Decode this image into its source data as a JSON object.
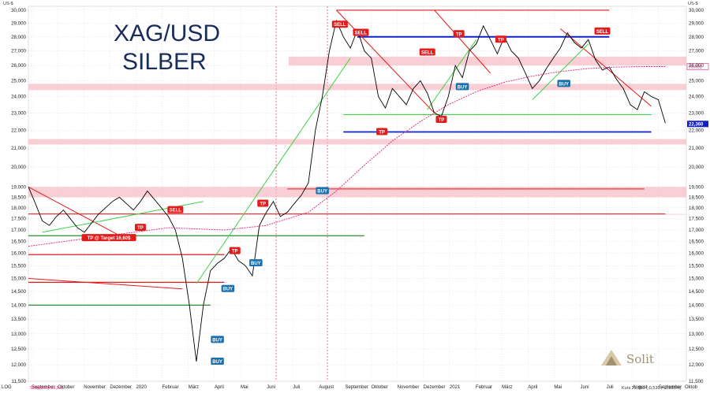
{
  "chart_data": {
    "type": "line",
    "instrument": "XAG/USD",
    "title": "XAG/USD",
    "subtitle": "SILBER",
    "ylabel": "US-$",
    "ylim": [
      11.5,
      30.3
    ],
    "y_scale": "log",
    "yticks": [
      "11,500",
      "12,000",
      "12,500",
      "13,000",
      "13,500",
      "14,000",
      "14,500",
      "15,000",
      "15,500",
      "16,000",
      "16,500",
      "17,000",
      "17,500",
      "18,000",
      "18,500",
      "19,000",
      "20,000",
      "21,000",
      "22,000",
      "23,000",
      "24,000",
      "25,000",
      "26,000",
      "27,000",
      "28,000",
      "29,000",
      "30,000"
    ],
    "x_labels": [
      "September",
      "Oktober",
      "November",
      "Dezember",
      "2020",
      "Februar",
      "März",
      "April",
      "Mai",
      "Juni",
      "Juli",
      "August",
      "September",
      "Oktober",
      "November",
      "Dezember",
      "2021",
      "Februar",
      "März",
      "April",
      "Mai",
      "Juni",
      "Juli",
      "August",
      "September",
      "Oktob"
    ],
    "x_label_left": "LOG",
    "series": [
      {
        "name": "XAG/USD",
        "color": "#000000",
        "values": [
          [
            0,
            19.0
          ],
          [
            1,
            18.2
          ],
          [
            2,
            17.4
          ],
          [
            3,
            17.2
          ],
          [
            4,
            17.6
          ],
          [
            5,
            17.9
          ],
          [
            6,
            17.5
          ],
          [
            7,
            17.1
          ],
          [
            8,
            16.9
          ],
          [
            9,
            17.3
          ],
          [
            10,
            17.7
          ],
          [
            11,
            18.0
          ],
          [
            12,
            18.3
          ],
          [
            13,
            18.5
          ],
          [
            14,
            18.2
          ],
          [
            15,
            17.9
          ],
          [
            16,
            18.3
          ],
          [
            17,
            18.8
          ],
          [
            18,
            18.4
          ],
          [
            19,
            18.0
          ],
          [
            20,
            17.6
          ],
          [
            21,
            17.0
          ],
          [
            22,
            15.8
          ],
          [
            23,
            14.0
          ],
          [
            24,
            12.1
          ],
          [
            25,
            14.0
          ],
          [
            26,
            15.3
          ],
          [
            27,
            15.6
          ],
          [
            28,
            15.8
          ],
          [
            29,
            16.2
          ],
          [
            30,
            15.7
          ],
          [
            31,
            15.5
          ],
          [
            32,
            15.1
          ],
          [
            33,
            17.2
          ],
          [
            34,
            17.8
          ],
          [
            35,
            18.3
          ],
          [
            36,
            17.6
          ],
          [
            37,
            17.8
          ],
          [
            38,
            18.2
          ],
          [
            39,
            18.6
          ],
          [
            40,
            19.2
          ],
          [
            41,
            22.0
          ],
          [
            42,
            24.0
          ],
          [
            43,
            27.0
          ],
          [
            44,
            29.2
          ],
          [
            45,
            28.0
          ],
          [
            46,
            27.2
          ],
          [
            47,
            28.5
          ],
          [
            48,
            27.0
          ],
          [
            49,
            26.5
          ],
          [
            50,
            24.0
          ],
          [
            51,
            23.3
          ],
          [
            52,
            24.5
          ],
          [
            53,
            24.0
          ],
          [
            54,
            23.5
          ],
          [
            55,
            24.5
          ],
          [
            56,
            25.0
          ],
          [
            57,
            24.2
          ],
          [
            58,
            23.0
          ],
          [
            59,
            22.8
          ],
          [
            60,
            24.0
          ],
          [
            61,
            26.0
          ],
          [
            62,
            25.2
          ],
          [
            63,
            27.0
          ],
          [
            64,
            27.5
          ],
          [
            65,
            28.8
          ],
          [
            66,
            27.8
          ],
          [
            67,
            26.8
          ],
          [
            68,
            28.0
          ],
          [
            69,
            27.0
          ],
          [
            70,
            26.5
          ],
          [
            71,
            25.5
          ],
          [
            72,
            24.5
          ],
          [
            73,
            25.0
          ],
          [
            74,
            25.8
          ],
          [
            75,
            26.5
          ],
          [
            76,
            27.2
          ],
          [
            77,
            28.3
          ],
          [
            78,
            27.6
          ],
          [
            79,
            27.2
          ],
          [
            80,
            27.8
          ],
          [
            81,
            26.4
          ],
          [
            82,
            25.7
          ],
          [
            83,
            25.9
          ],
          [
            84,
            25.1
          ],
          [
            85,
            24.5
          ],
          [
            86,
            23.5
          ],
          [
            87,
            23.2
          ],
          [
            88,
            24.3
          ],
          [
            89,
            24.0
          ],
          [
            90,
            23.8
          ],
          [
            91,
            22.4
          ]
        ]
      },
      {
        "name": "SMA(200) 25,931",
        "color": "#e0207a",
        "values": [
          [
            0,
            16.3
          ],
          [
            10,
            16.7
          ],
          [
            20,
            17.1
          ],
          [
            28,
            17.0
          ],
          [
            34,
            17.2
          ],
          [
            40,
            17.8
          ],
          [
            44,
            18.8
          ],
          [
            48,
            20.1
          ],
          [
            52,
            21.4
          ],
          [
            56,
            22.5
          ],
          [
            60,
            23.5
          ],
          [
            64,
            24.3
          ],
          [
            68,
            24.9
          ],
          [
            72,
            25.3
          ],
          [
            76,
            25.6
          ],
          [
            80,
            25.8
          ],
          [
            84,
            25.9
          ],
          [
            88,
            25.93
          ],
          [
            91,
            25.93
          ]
        ]
      }
    ],
    "annotations": [
      {
        "label": "SELL",
        "x": 44.5,
        "y": 28.9
      },
      {
        "label": "SELL",
        "x": 47.5,
        "y": 28.3
      },
      {
        "label": "SELL",
        "x": 57,
        "y": 26.9
      },
      {
        "label": "SELL",
        "x": 21,
        "y": 17.9
      },
      {
        "label": "SELL",
        "x": 82,
        "y": 28.4
      },
      {
        "label": "TP",
        "x": 61.5,
        "y": 28.2
      },
      {
        "label": "TP",
        "x": 67.5,
        "y": 27.8
      },
      {
        "label": "TP",
        "x": 59,
        "y": 22.6
      },
      {
        "label": "TP",
        "x": 50.5,
        "y": 21.9
      },
      {
        "label": "TP",
        "x": 33.5,
        "y": 18.2
      },
      {
        "label": "TP",
        "x": 29.5,
        "y": 16.1
      },
      {
        "label": "TP",
        "x": 16,
        "y": 17.1
      },
      {
        "label": "TP @ Target 16,60$",
        "x": 11.5,
        "y": 16.65
      },
      {
        "label": "BUY",
        "x": 42,
        "y": 18.8
      },
      {
        "label": "BUY",
        "x": 62,
        "y": 24.6
      },
      {
        "label": "BUY",
        "x": 76.5,
        "y": 24.8
      },
      {
        "label": "BUY",
        "x": 32.5,
        "y": 15.6
      },
      {
        "label": "BUY",
        "x": 28.5,
        "y": 14.6
      },
      {
        "label": "BUY",
        "x": 27,
        "y": 12.8
      },
      {
        "label": "BUY",
        "x": 27,
        "y": 12.1
      }
    ],
    "last_price_label": "22,360",
    "sma_label": "25,931",
    "sma_legend": "SMA(200) 25,931",
    "footer_text": "Kurs 22,360 (-0,530 / -2,315%)",
    "grid": true,
    "legend": "none"
  },
  "branding": {
    "logo_text": "Solit",
    "logo_color": "#a3906e"
  },
  "colors": {
    "sell": "#e31b1b",
    "tp": "#e31b1b",
    "buy": "#1a6fb0",
    "resistance": "#e31b1b",
    "support_blue": "#1020c8",
    "trend_green": "#3fd24a",
    "zone_pink": "#f7bdc5",
    "sma": "#e0207a"
  }
}
